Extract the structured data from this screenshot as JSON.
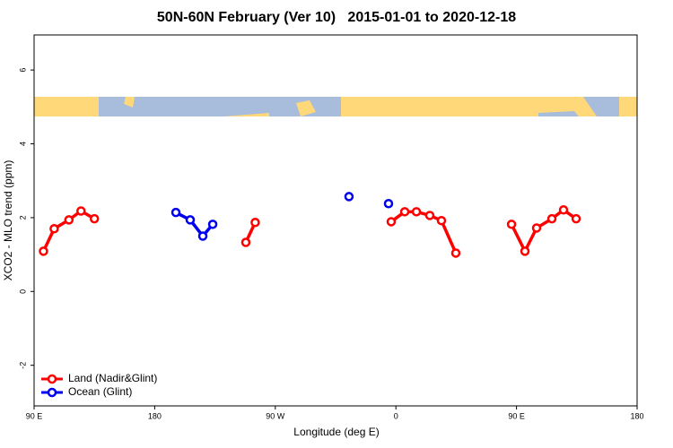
{
  "chart_data": {
    "type": "line",
    "title": "50N-60N February (Ver 10)   2015-01-01 to 2020-12-18",
    "x_label": "Longitude (deg E)",
    "y_label": "XCO2 - MLO trend (ppm)",
    "xlim": [
      90,
      540
    ],
    "xticks": [
      {
        "value": 90,
        "label": "90 E"
      },
      180,
      {
        "value": 270,
        "label": "90 W"
      },
      {
        "value": 360,
        "label": "0"
      },
      {
        "value": 450,
        "label": "90 E"
      },
      {
        "value": 540,
        "label": "180"
      }
    ],
    "ylim": [
      -3.1,
      6.95
    ],
    "yticks": [
      -2,
      0,
      2,
      4,
      6
    ],
    "legend": "bottom-left",
    "series": [
      {
        "name": "Land (Nadir&Glint)",
        "color": "#ff0000",
        "x": [
          97,
          105,
          116,
          125,
          135,
          null,
          248,
          255,
          null,
          356.5,
          366.6,
          375.3,
          385.3,
          394,
          404.7,
          null,
          446.3,
          456.3,
          465,
          476.4,
          485.1,
          494.5
        ],
        "values": [
          1.09,
          1.7,
          1.94,
          2.18,
          1.97,
          null,
          1.33,
          1.87,
          null,
          1.89,
          2.16,
          2.16,
          2.06,
          1.92,
          1.04,
          null,
          1.82,
          1.09,
          1.72,
          1.97,
          2.21,
          1.97
        ]
      },
      {
        "name": "Ocean (Glint)",
        "color": "#0000ee",
        "x": [
          195.8,
          206.5,
          215.9,
          223.3,
          null,
          325,
          null,
          354.5
        ],
        "values": [
          2.14,
          1.94,
          1.5,
          1.82,
          null,
          2.57,
          null,
          2.38
        ]
      }
    ]
  }
}
